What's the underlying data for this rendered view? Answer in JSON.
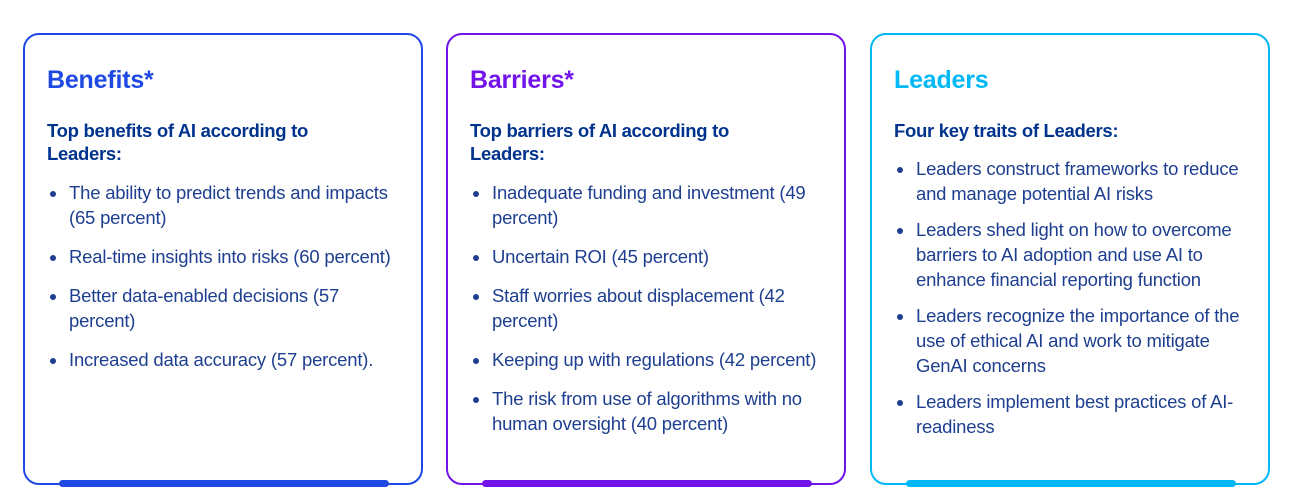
{
  "cards": [
    {
      "title": "Benefits*",
      "subtitle": "Top benefits of AI according to Leaders:",
      "items": [
        "The ability to predict trends and impacts (65 percent)",
        "Real-time insights into risks (60 percent)",
        "Better data-enabled decisions (57 percent)",
        "Increased data accuracy (57 percent)."
      ]
    },
    {
      "title": "Barriers*",
      "subtitle": "Top barriers of AI according to Leaders:",
      "items": [
        "Inadequate funding and investment (49 percent)",
        "Uncertain ROI (45 percent)",
        "Staff worries about displacement (42 percent)",
        "Keeping up with regulations (42 percent)",
        "The risk from use of algorithms with no human oversight (40 percent)"
      ]
    },
    {
      "title": "Leaders",
      "subtitle": "Four key traits of Leaders:",
      "items": [
        "Leaders construct frameworks to reduce and manage potential AI risks",
        "Leaders shed light on how to overcome barriers to AI adoption and use AI to enhance financial reporting function",
        "Leaders recognize the importance of the use of ethical AI and work to mitigate GenAI concerns",
        "Leaders implement best practices of AI-readiness"
      ]
    }
  ],
  "colors": {
    "benefits": "#1e49e2",
    "barriers": "#7213ea",
    "leaders": "#00b8f5",
    "text": "#1e3f8f",
    "subtitle": "#00338d"
  }
}
